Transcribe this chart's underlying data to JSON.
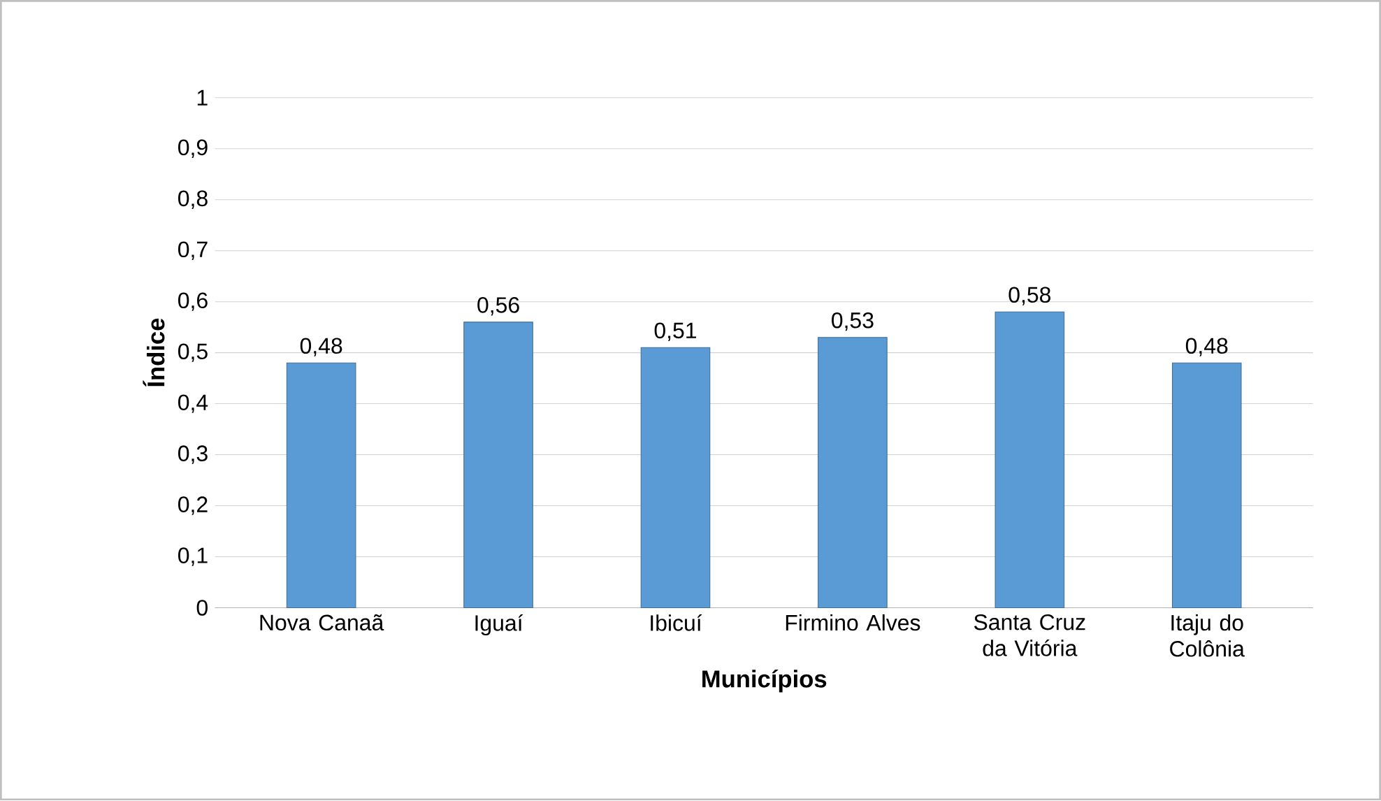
{
  "chart_data": {
    "type": "bar",
    "xlabel": "Municípios",
    "ylabel": "Índice",
    "categories": [
      "Nova Canaã",
      "Iguaí",
      "Ibicuí",
      "Firmino Alves",
      "Santa Cruz da Vitória",
      "Itaju do Colônia"
    ],
    "values": [
      0.48,
      0.56,
      0.51,
      0.53,
      0.58,
      0.48
    ],
    "value_labels": [
      "0,48",
      "0,56",
      "0,51",
      "0,53",
      "0,58",
      "0,48"
    ],
    "color": "#5b9bd5",
    "ylim": [
      0,
      1
    ],
    "yticks": [
      0,
      {
        "value": 0.1,
        "label": "0,1"
      },
      {
        "value": 0.2,
        "label": "0,2"
      },
      {
        "value": 0.3,
        "label": "0,3"
      },
      {
        "value": 0.4,
        "label": "0,4"
      },
      {
        "value": 0.5,
        "label": "0,5"
      },
      {
        "value": 0.6,
        "label": "0,6"
      },
      {
        "value": 0.7,
        "label": "0,7"
      },
      {
        "value": 0.8,
        "label": "0,8"
      },
      {
        "value": 0.9,
        "label": "0,9"
      },
      1
    ],
    "grid": "y"
  }
}
